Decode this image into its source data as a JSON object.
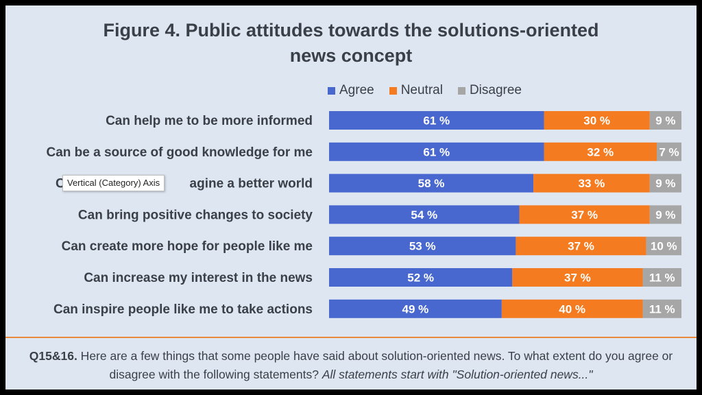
{
  "title_line1": "Figure 4. Public attitudes towards the solutions-oriented",
  "title_line2": "news concept",
  "tooltip": "Vertical (Category) Axis",
  "footnote": {
    "code": "Q15&16.",
    "text": " Here are a few things that some people have said about solution-oriented news. To what extent do you agree or disagree with the following statements? ",
    "italic": "All statements start with \"Solution-oriented news...\""
  },
  "colors": {
    "agree": "#4868cf",
    "neutral": "#f47b20",
    "disagree": "#a6a6a6"
  },
  "chart_data": {
    "type": "bar",
    "orientation": "horizontal",
    "stacked": true,
    "percent_stacked": true,
    "title": "Figure 4. Public attitudes towards the solutions-oriented news concept",
    "xlabel": "",
    "ylabel": "",
    "legend_position": "top",
    "categories": [
      "Can help me to be more informed",
      "Can be a source of good knowledge for me",
      "Can help me to imagine a better world",
      "Can bring positive changes to society",
      "Can create more hope for people like me",
      "Can increase my interest in the news",
      "Can inspire people like me to take actions"
    ],
    "category_labels_visible": [
      "Can help me to be more informed",
      "Can be a source of good knowledge for me",
      "C",
      "Can bring positive changes to society",
      "Can create more hope for people like me",
      "Can increase my interest in the news",
      "Can inspire people like me to take actions"
    ],
    "category_label_partial": "agine a better world",
    "series": [
      {
        "name": "Agree",
        "values": [
          61,
          61,
          58,
          54,
          53,
          52,
          49
        ],
        "labels": [
          "61 %",
          "61 %",
          "58 %",
          "54 %",
          "53 %",
          "52 %",
          "49 %"
        ]
      },
      {
        "name": "Neutral",
        "values": [
          30,
          32,
          33,
          37,
          37,
          37,
          40
        ],
        "labels": [
          "30 %",
          "32 %",
          "33 %",
          "37 %",
          "37 %",
          "37 %",
          "40 %"
        ]
      },
      {
        "name": "Disagree",
        "values": [
          9,
          7,
          9,
          9,
          10,
          11,
          11
        ],
        "labels": [
          "9 %",
          "7 %",
          "9 %",
          "9 %",
          "10 %",
          "11 %",
          "11 %"
        ]
      }
    ]
  }
}
